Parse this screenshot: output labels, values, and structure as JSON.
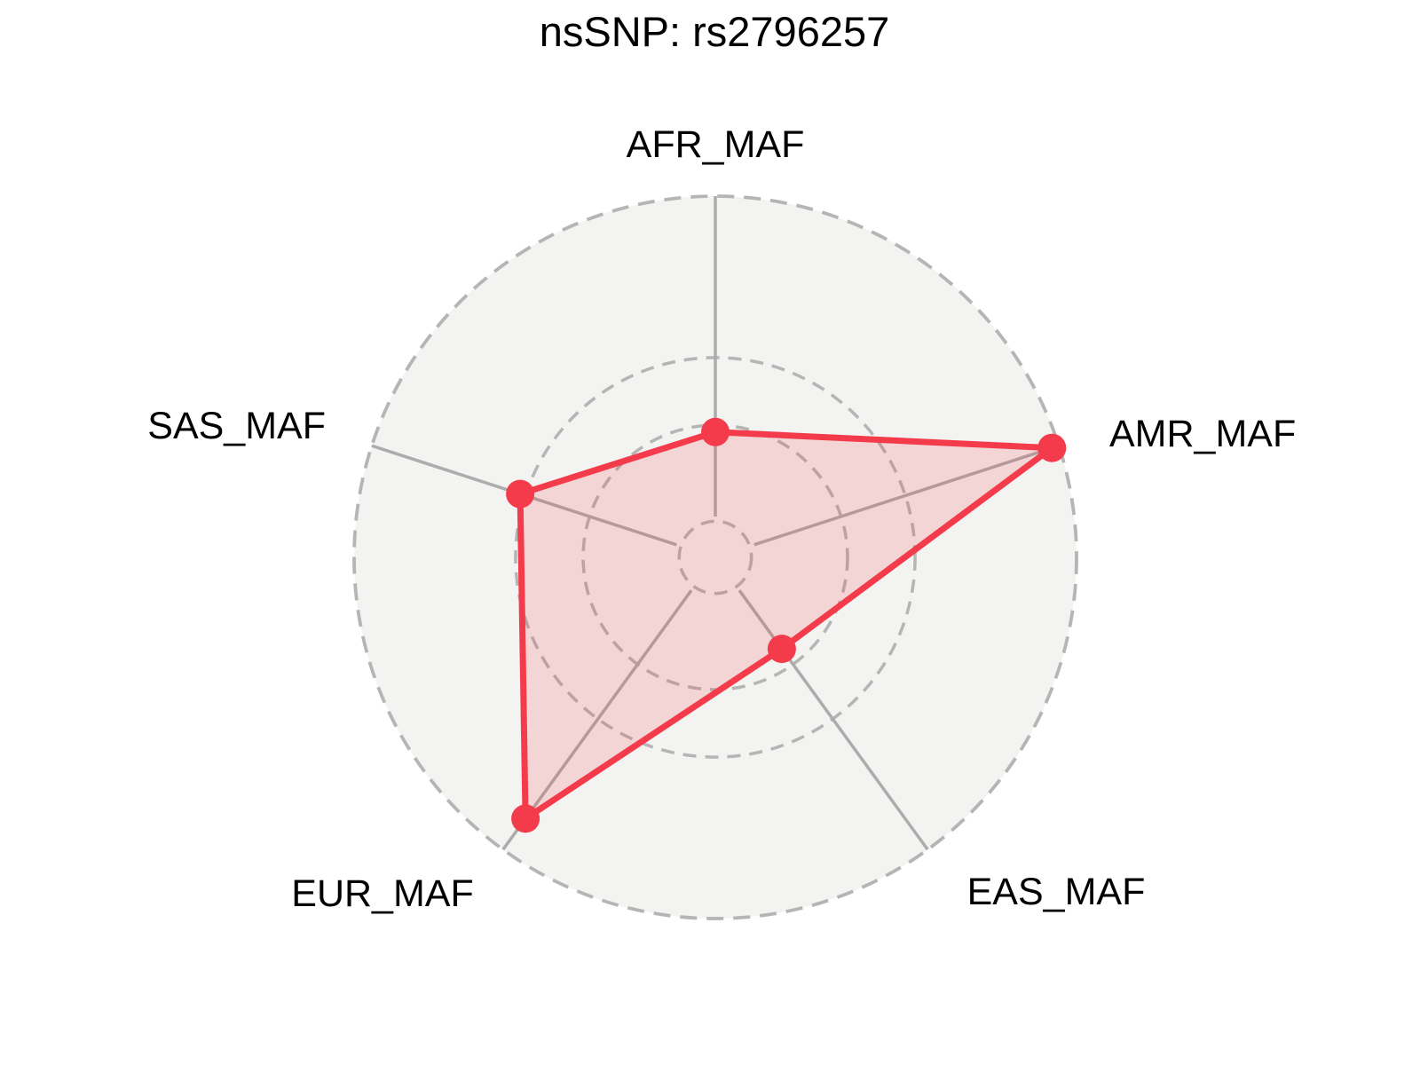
{
  "page": {
    "background": "#FFFFFF"
  },
  "chart_data": {
    "type": "radar",
    "title": "nsSNP: rs2796257",
    "axes": [
      {
        "label": "AFR_MAF",
        "value": 0.347
      },
      {
        "label": "AMR_MAF",
        "value": 0.98
      },
      {
        "label": "EAS_MAF",
        "value": 0.313
      },
      {
        "label": "EUR_MAF",
        "value": 0.894
      },
      {
        "label": "SAS_MAF",
        "value": 0.568
      }
    ],
    "series": [
      {
        "name": "MAF",
        "values": [
          0.347,
          0.98,
          0.313,
          0.894,
          0.568
        ]
      }
    ],
    "value_axis": {
      "min": 0,
      "max": 1,
      "tick_labels_visible": false,
      "note": "Radial axis has no numeric tick labels; values are fractions of the outer dashed ring radius."
    },
    "gridlines": {
      "style": "dashed-circles",
      "radius_fractions": [
        0.1,
        0.366,
        0.553,
        1.0
      ]
    },
    "angles_clockwise_from_top_deg": [
      0,
      72,
      144,
      216,
      288
    ],
    "legend": "none",
    "colors": {
      "series_line": "#F43B4B",
      "series_fill": "rgba(244,59,75,0.16)",
      "grid_dashed": "#B5B5B5",
      "spokes": "#ACACAC",
      "plot_disk": "#F3F3F1",
      "background": "#FFFFFF",
      "text": "#000000"
    }
  }
}
